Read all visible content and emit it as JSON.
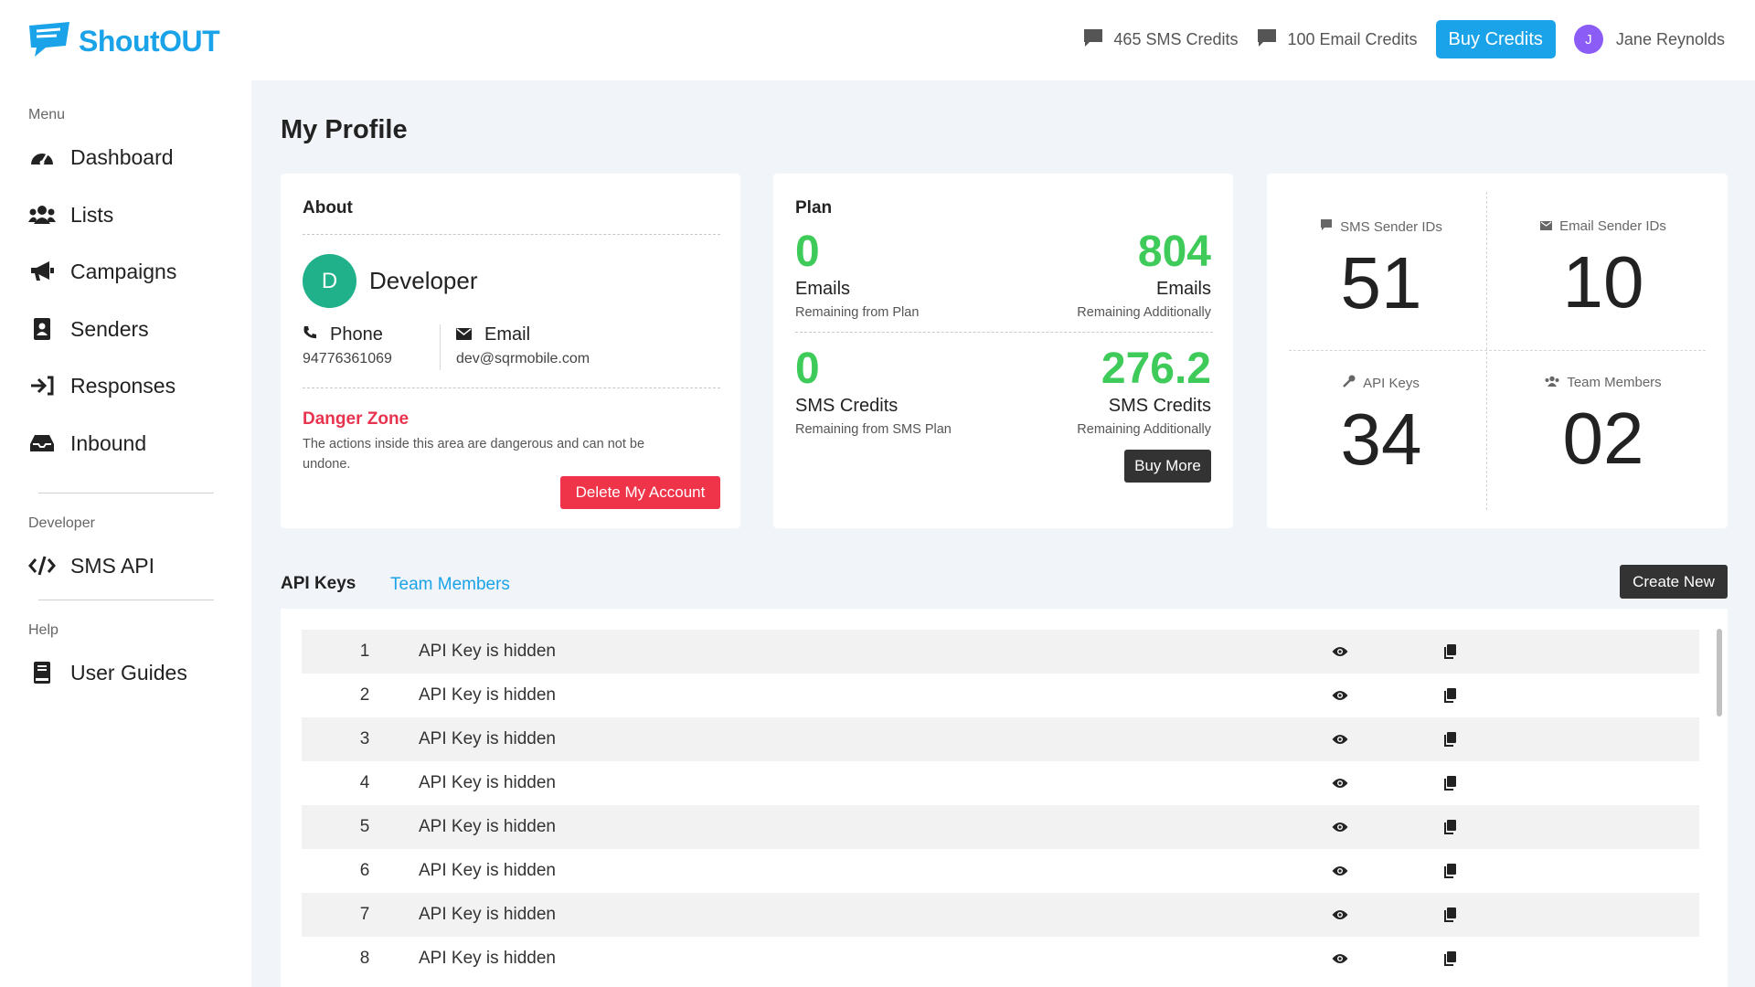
{
  "header": {
    "logo_text": "ShoutOUT",
    "sms_credits": "465 SMS Credits",
    "email_credits": "100 Email Credits",
    "buy_credits": "Buy Credits",
    "user_initial": "J",
    "user_name": "Jane Reynolds",
    "brand_color": "#1aa3e8"
  },
  "sidebar": {
    "menu_label": "Menu",
    "items": [
      {
        "label": "Dashboard",
        "icon": "gauge-icon"
      },
      {
        "label": "Lists",
        "icon": "users-icon"
      },
      {
        "label": "Campaigns",
        "icon": "megaphone-icon"
      },
      {
        "label": "Senders",
        "icon": "id-badge-icon"
      },
      {
        "label": "Responses",
        "icon": "reply-icon"
      },
      {
        "label": "Inbound",
        "icon": "inbox-icon"
      }
    ],
    "developer_label": "Developer",
    "developer_items": [
      {
        "label": "SMS API",
        "icon": "code-icon"
      }
    ],
    "help_label": "Help",
    "help_items": [
      {
        "label": "User Guides",
        "icon": "book-icon"
      }
    ]
  },
  "main": {
    "title": "My Profile",
    "about": {
      "title": "About",
      "avatar_initial": "D",
      "name": "Developer",
      "phone_label": "Phone",
      "phone": "94776361069",
      "email_label": "Email",
      "email": "dev@sqrmobile.com",
      "danger_title": "Danger Zone",
      "danger_text": "The actions inside this area are dangerous and can not be undone.",
      "delete_button": "Delete My Account"
    },
    "plan": {
      "title": "Plan",
      "emails_plan": "0",
      "emails_plan_label": "Emails",
      "emails_plan_sub": "Remaining from Plan",
      "emails_add": "804",
      "emails_add_label": "Emails",
      "emails_add_sub": "Remaining Additionally",
      "sms_plan": "0",
      "sms_plan_label": "SMS Credits",
      "sms_plan_sub": "Remaining from SMS Plan",
      "sms_add": "276.2",
      "sms_add_label": "SMS Credits",
      "sms_add_sub": "Remaining Additionally",
      "buy_more": "Buy More"
    },
    "stats": {
      "sms_sender_label": "SMS Sender IDs",
      "sms_sender_value": "51",
      "email_sender_label": "Email Sender IDs",
      "email_sender_value": "10",
      "api_keys_label": "API Keys",
      "api_keys_value": "34",
      "team_label": "Team Members",
      "team_value": "02"
    },
    "tabs": {
      "api_keys": "API Keys",
      "team_members": "Team Members",
      "create_new": "Create New"
    },
    "api_keys": [
      {
        "index": "1",
        "text": "API Key is hidden"
      },
      {
        "index": "2",
        "text": "API Key is hidden"
      },
      {
        "index": "3",
        "text": "API Key is hidden"
      },
      {
        "index": "4",
        "text": "API Key is hidden"
      },
      {
        "index": "5",
        "text": "API Key is hidden"
      },
      {
        "index": "6",
        "text": "API Key is hidden"
      },
      {
        "index": "7",
        "text": "API Key is hidden"
      },
      {
        "index": "8",
        "text": "API Key is hidden"
      }
    ]
  }
}
